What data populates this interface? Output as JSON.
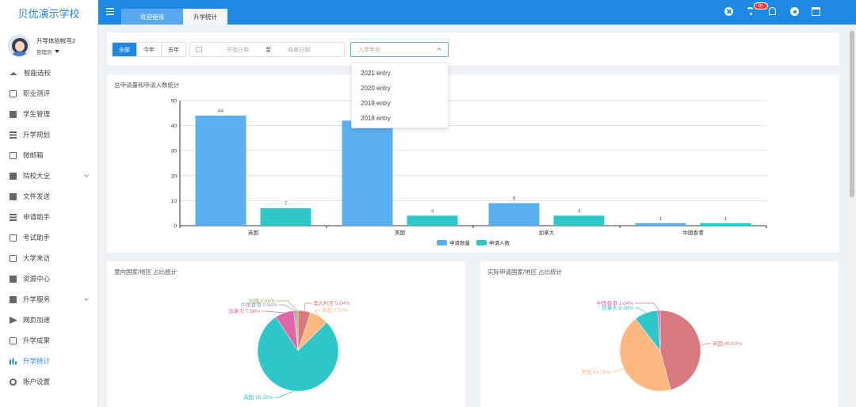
{
  "sidebar": {
    "brand": "贝优演示学校",
    "user_name": "升导体验帐号2",
    "user_role": "管理员",
    "items": [
      {
        "label": "智能选校",
        "icon": "graduation-cap-icon"
      },
      {
        "label": "职业测评",
        "icon": "form-icon"
      },
      {
        "label": "学生管理",
        "icon": "users-icon"
      },
      {
        "label": "升学规划",
        "icon": "list-icon"
      },
      {
        "label": "微邮箱",
        "icon": "mail-icon"
      },
      {
        "label": "院校大全",
        "icon": "institution-icon"
      },
      {
        "label": "文件发送",
        "icon": "file-icon"
      },
      {
        "label": "申请助手",
        "icon": "list-icon"
      },
      {
        "label": "考试助手",
        "icon": "edit-icon"
      },
      {
        "label": "大学来访",
        "icon": "calendar-check-icon"
      },
      {
        "label": "资源中心",
        "icon": "briefcase-icon"
      },
      {
        "label": "升学服务",
        "icon": "grid-icon"
      },
      {
        "label": "网页加速",
        "icon": "paper-plane-icon"
      },
      {
        "label": "升学成果",
        "icon": "id-card-icon"
      },
      {
        "label": "升学统计",
        "icon": "bar-chart-icon"
      },
      {
        "label": "账户设置",
        "icon": "gear-icon"
      }
    ]
  },
  "header": {
    "tabs": [
      "欢迎使用",
      "升学统计"
    ],
    "badge": "9+"
  },
  "filter": {
    "segments": [
      "全部",
      "今年",
      "去年"
    ],
    "start_placeholder": "开始日期",
    "separator": "至",
    "end_placeholder": "结束日期",
    "year_placeholder": "入学年份",
    "year_options": [
      "2021 entry",
      "2020 entry",
      "2019 entry",
      "2018 entry"
    ]
  },
  "bar_panel_title": "总申请量和申请人数统计",
  "pie1_title": "意向国家/地区 占比统计",
  "pie2_title": "实际申请国家/地区 占比统计",
  "chart_data": [
    {
      "type": "bar",
      "title": "总申请量和申请人数统计",
      "categories": [
        "英国",
        "美国",
        "加拿大",
        "中国香港"
      ],
      "series": [
        {
          "name": "申请数量",
          "values": [
            44,
            42,
            9,
            1
          ],
          "color": "#5ab0ee"
        },
        {
          "name": "申请人数",
          "values": [
            7,
            4,
            4,
            1
          ],
          "color": "#2ec7c9"
        }
      ],
      "data_labels": [
        "44",
        "7",
        "",
        "4",
        "9",
        "4",
        "1",
        "1"
      ],
      "ylim": [
        0,
        50
      ],
      "yticks": [
        "0",
        "10",
        "20",
        "30",
        "40",
        "50"
      ],
      "legend_position": "bottom",
      "grid": true
    },
    {
      "type": "pie",
      "title": "意向国家/地区 占比统计",
      "slices": [
        {
          "label": "澳大利亚",
          "value": 5.04,
          "color": "#d87a80",
          "text": "澳大利亚 5.04%"
        },
        {
          "label": "美国",
          "value": 7.57,
          "color": "#ffb980",
          "text": "美国 7.57%"
        },
        {
          "label": "英国",
          "value": 78.15,
          "color": "#2ec7c9",
          "text": "英国 78.15%"
        },
        {
          "label": "加拿大",
          "value": 7.56,
          "color": "#e066a7",
          "text": "加拿大 7.56%"
        },
        {
          "label": "中国香港",
          "value": 0.84,
          "color": "#8d98b3",
          "text": "中国香港 0.84%"
        },
        {
          "label": "中国",
          "value": 0.84,
          "color": "#97b552",
          "text": "中国 0.84%"
        }
      ]
    },
    {
      "type": "pie",
      "title": "实际申请国家/地区 占比统计",
      "slices": [
        {
          "label": "英国",
          "value": 45.83,
          "color": "#d87a80",
          "text": "英国 45.83%"
        },
        {
          "label": "美国",
          "value": 43.75,
          "color": "#ffb980",
          "text": "美国 43.75%"
        },
        {
          "label": "加拿大",
          "value": 9.38,
          "color": "#2ec7c9",
          "text": "加拿大 9.38%"
        },
        {
          "label": "中国香港",
          "value": 1.04,
          "color": "#e066a7",
          "text": "中国香港 1.04%"
        }
      ]
    }
  ]
}
